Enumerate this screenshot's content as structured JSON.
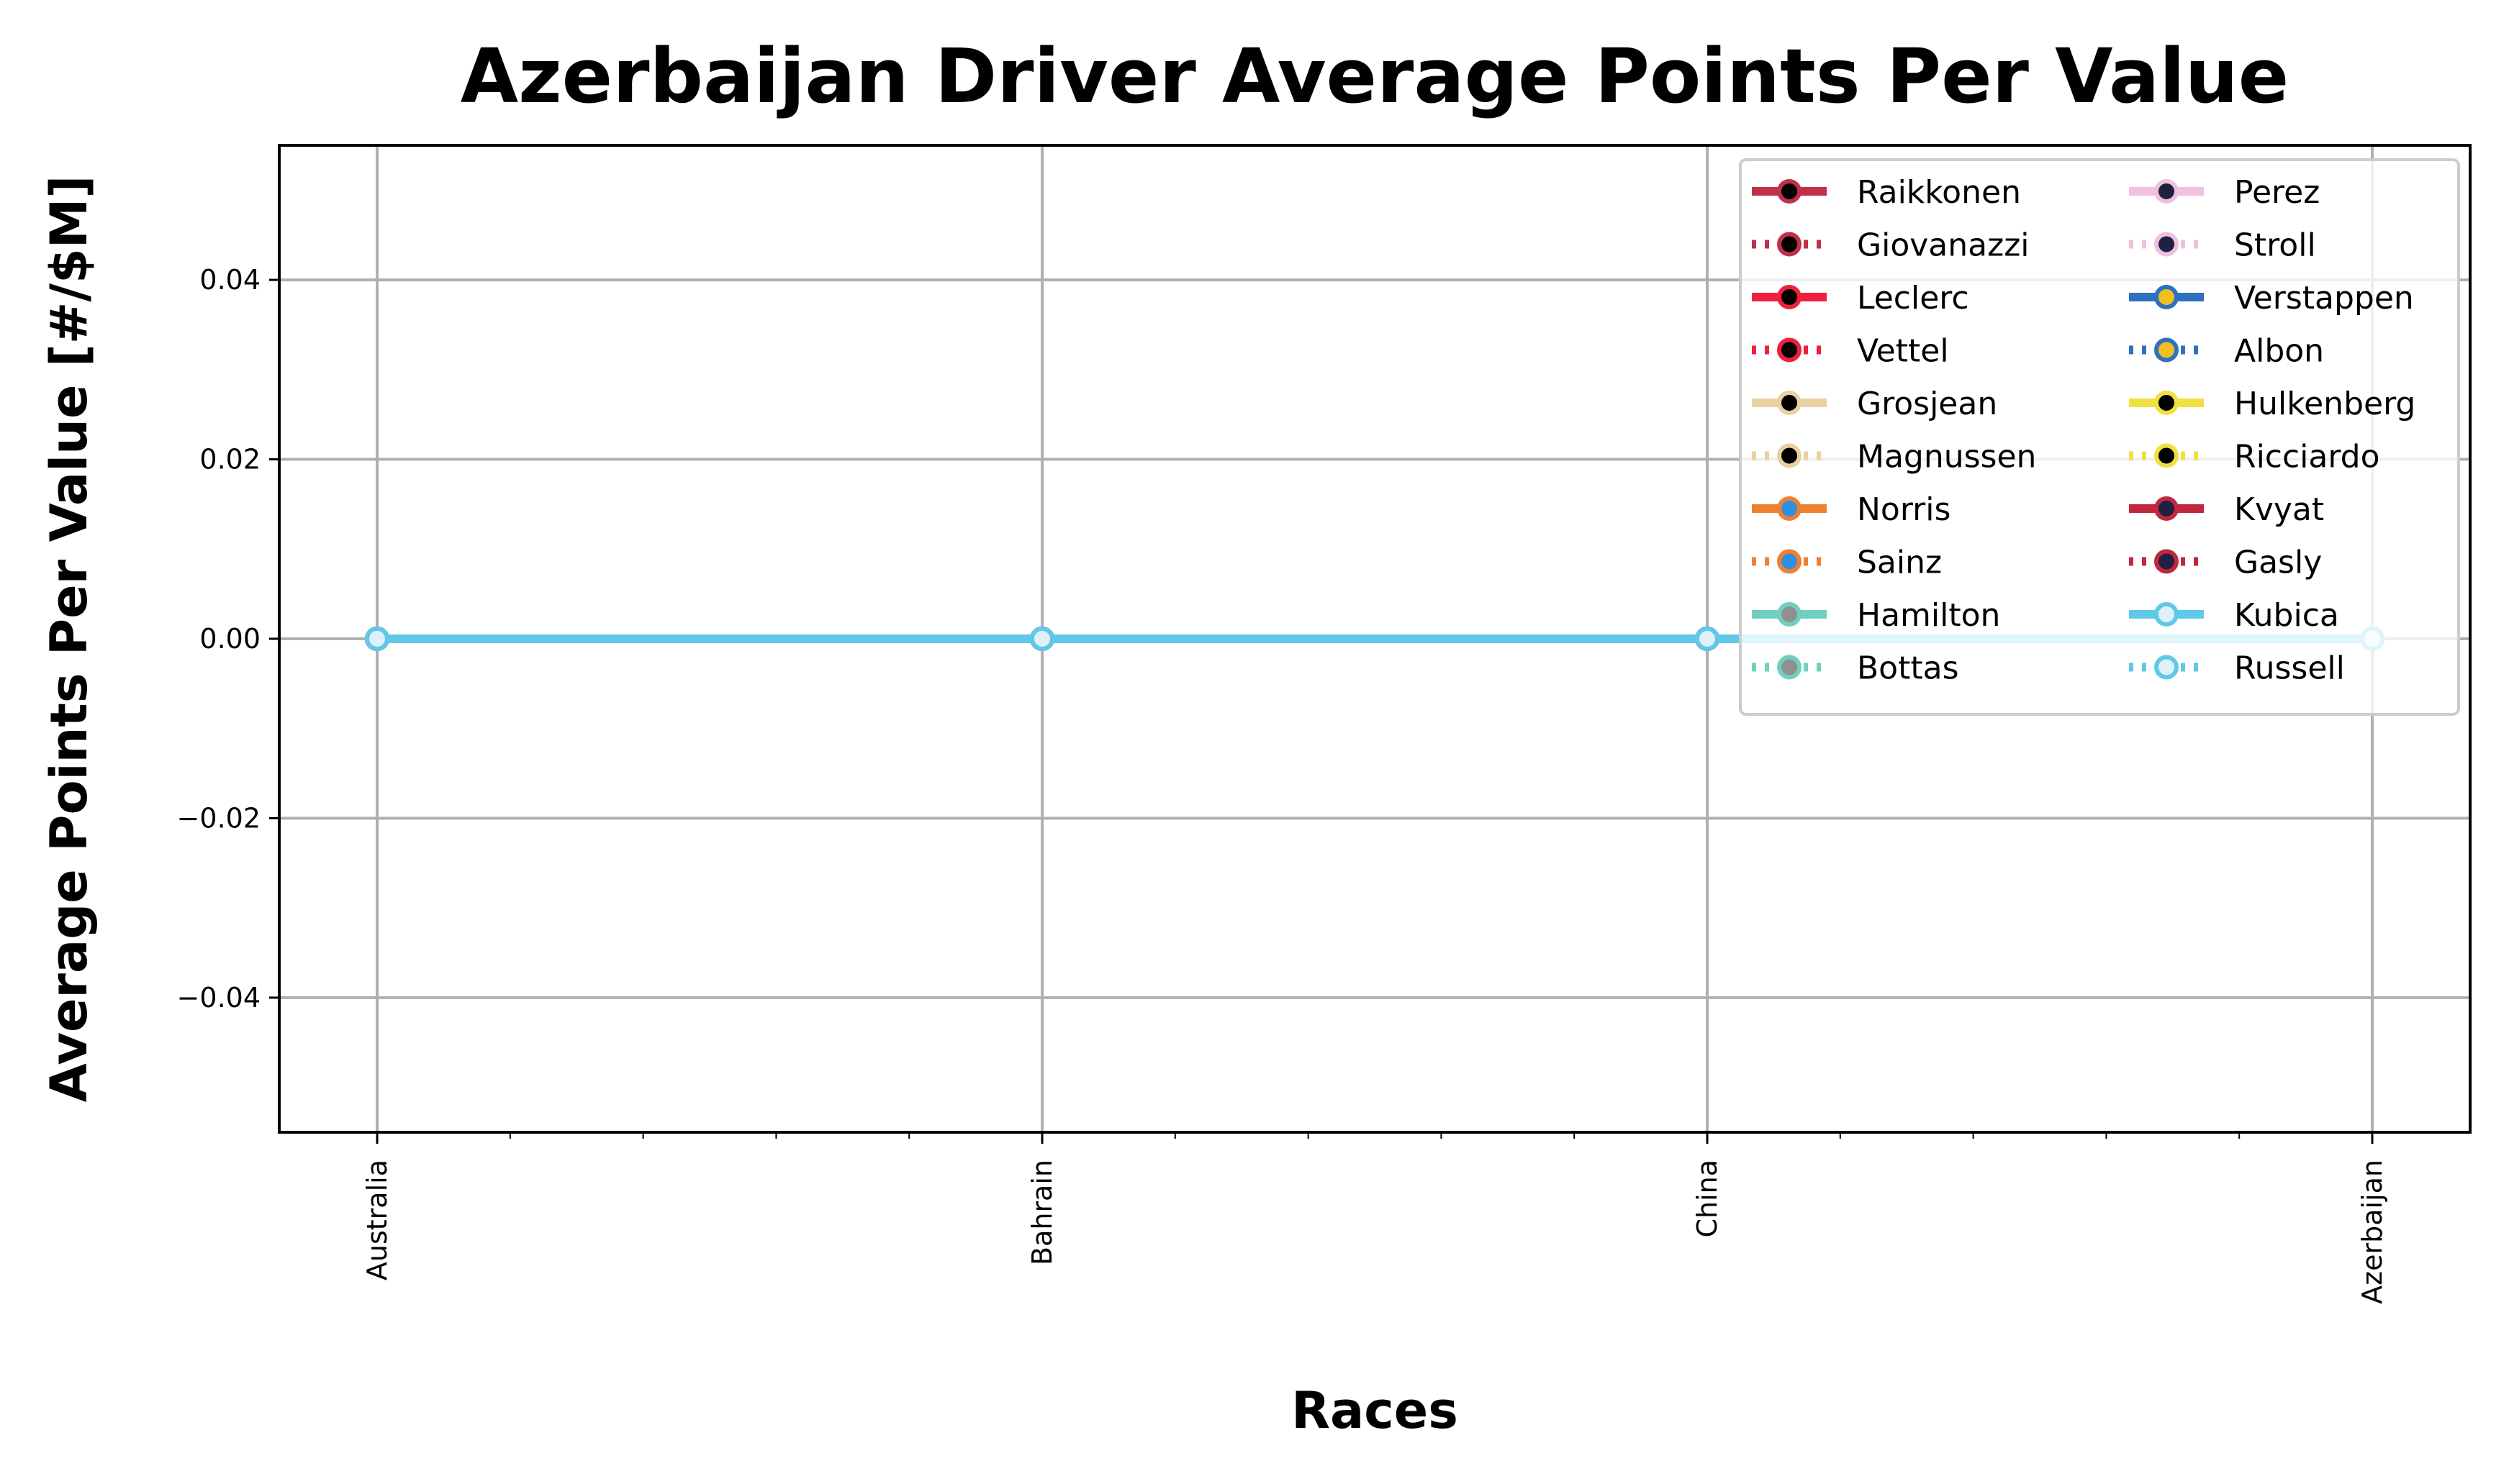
{
  "chart_data": {
    "type": "line",
    "title": "Azerbaijan Driver Average Points Per Value",
    "xlabel": "Races",
    "ylabel": "Average Points Per Value [#/$M]",
    "categories": [
      "Australia",
      "Bahrain",
      "China",
      "Azerbaijan"
    ],
    "ylim": [
      -0.055,
      0.055
    ],
    "yticks": [
      -0.04,
      -0.02,
      0.0,
      0.02,
      0.04
    ],
    "ytick_labels": [
      "−0.04",
      "−0.02",
      "0.00",
      "0.02",
      "0.04"
    ],
    "grid": true,
    "legend_position": "top-right",
    "legend_columns": 2,
    "series": [
      {
        "name": "Raikkonen",
        "color": "#c0304a",
        "marker_fill": "#000000",
        "style": "solid",
        "values": [
          0,
          0,
          0,
          0
        ]
      },
      {
        "name": "Giovanazzi",
        "color": "#c0304a",
        "marker_fill": "#000000",
        "style": "dotted",
        "values": [
          0,
          0,
          0,
          0
        ]
      },
      {
        "name": "Leclerc",
        "color": "#f0203c",
        "marker_fill": "#000000",
        "style": "solid",
        "values": [
          0,
          0,
          0,
          0
        ]
      },
      {
        "name": "Vettel",
        "color": "#f0203c",
        "marker_fill": "#000000",
        "style": "dotted",
        "values": [
          0,
          0,
          0,
          0
        ]
      },
      {
        "name": "Grosjean",
        "color": "#e8d0a0",
        "marker_fill": "#000000",
        "style": "solid",
        "values": [
          0,
          0,
          0,
          0
        ]
      },
      {
        "name": "Magnussen",
        "color": "#e8d0a0",
        "marker_fill": "#000000",
        "style": "dotted",
        "values": [
          0,
          0,
          0,
          0
        ]
      },
      {
        "name": "Norris",
        "color": "#f08030",
        "marker_fill": "#3090e0",
        "style": "solid",
        "values": [
          0,
          0,
          0,
          0
        ]
      },
      {
        "name": "Sainz",
        "color": "#f08030",
        "marker_fill": "#3090e0",
        "style": "dotted",
        "values": [
          0,
          0,
          0,
          0
        ]
      },
      {
        "name": "Hamilton",
        "color": "#70d0c0",
        "marker_fill": "#909090",
        "style": "solid",
        "values": [
          0,
          0,
          0,
          0
        ]
      },
      {
        "name": "Bottas",
        "color": "#70d0c0",
        "marker_fill": "#909090",
        "style": "dotted",
        "values": [
          0,
          0,
          0,
          0
        ]
      },
      {
        "name": "Perez",
        "color": "#f0c0dc",
        "marker_fill": "#202040",
        "style": "solid",
        "values": [
          0,
          0,
          0,
          0
        ]
      },
      {
        "name": "Stroll",
        "color": "#f0c0dc",
        "marker_fill": "#202040",
        "style": "dotted",
        "values": [
          0,
          0,
          0,
          0
        ]
      },
      {
        "name": "Verstappen",
        "color": "#3070c0",
        "marker_fill": "#f0c020",
        "style": "solid",
        "values": [
          0,
          0,
          0,
          0
        ]
      },
      {
        "name": "Albon",
        "color": "#3070c0",
        "marker_fill": "#f0c020",
        "style": "dotted",
        "values": [
          0,
          0,
          0,
          0
        ]
      },
      {
        "name": "Hulkenberg",
        "color": "#f0e040",
        "marker_fill": "#000000",
        "style": "solid",
        "values": [
          0,
          0,
          0,
          0
        ]
      },
      {
        "name": "Ricciardo",
        "color": "#f0e040",
        "marker_fill": "#000000",
        "style": "dotted",
        "values": [
          0,
          0,
          0,
          0
        ]
      },
      {
        "name": "Kvyat",
        "color": "#c02840",
        "marker_fill": "#202040",
        "style": "solid",
        "values": [
          0,
          0,
          0,
          0
        ]
      },
      {
        "name": "Gasly",
        "color": "#c02840",
        "marker_fill": "#202040",
        "style": "dotted",
        "values": [
          0,
          0,
          0,
          0
        ]
      },
      {
        "name": "Kubica",
        "color": "#60c8e8",
        "marker_fill": "#e0f0f8",
        "style": "solid",
        "values": [
          0,
          0,
          0,
          0
        ]
      },
      {
        "name": "Russell",
        "color": "#60c8e8",
        "marker_fill": "#e0f0f8",
        "style": "dotted",
        "values": [
          0,
          0,
          0,
          0
        ]
      }
    ]
  }
}
